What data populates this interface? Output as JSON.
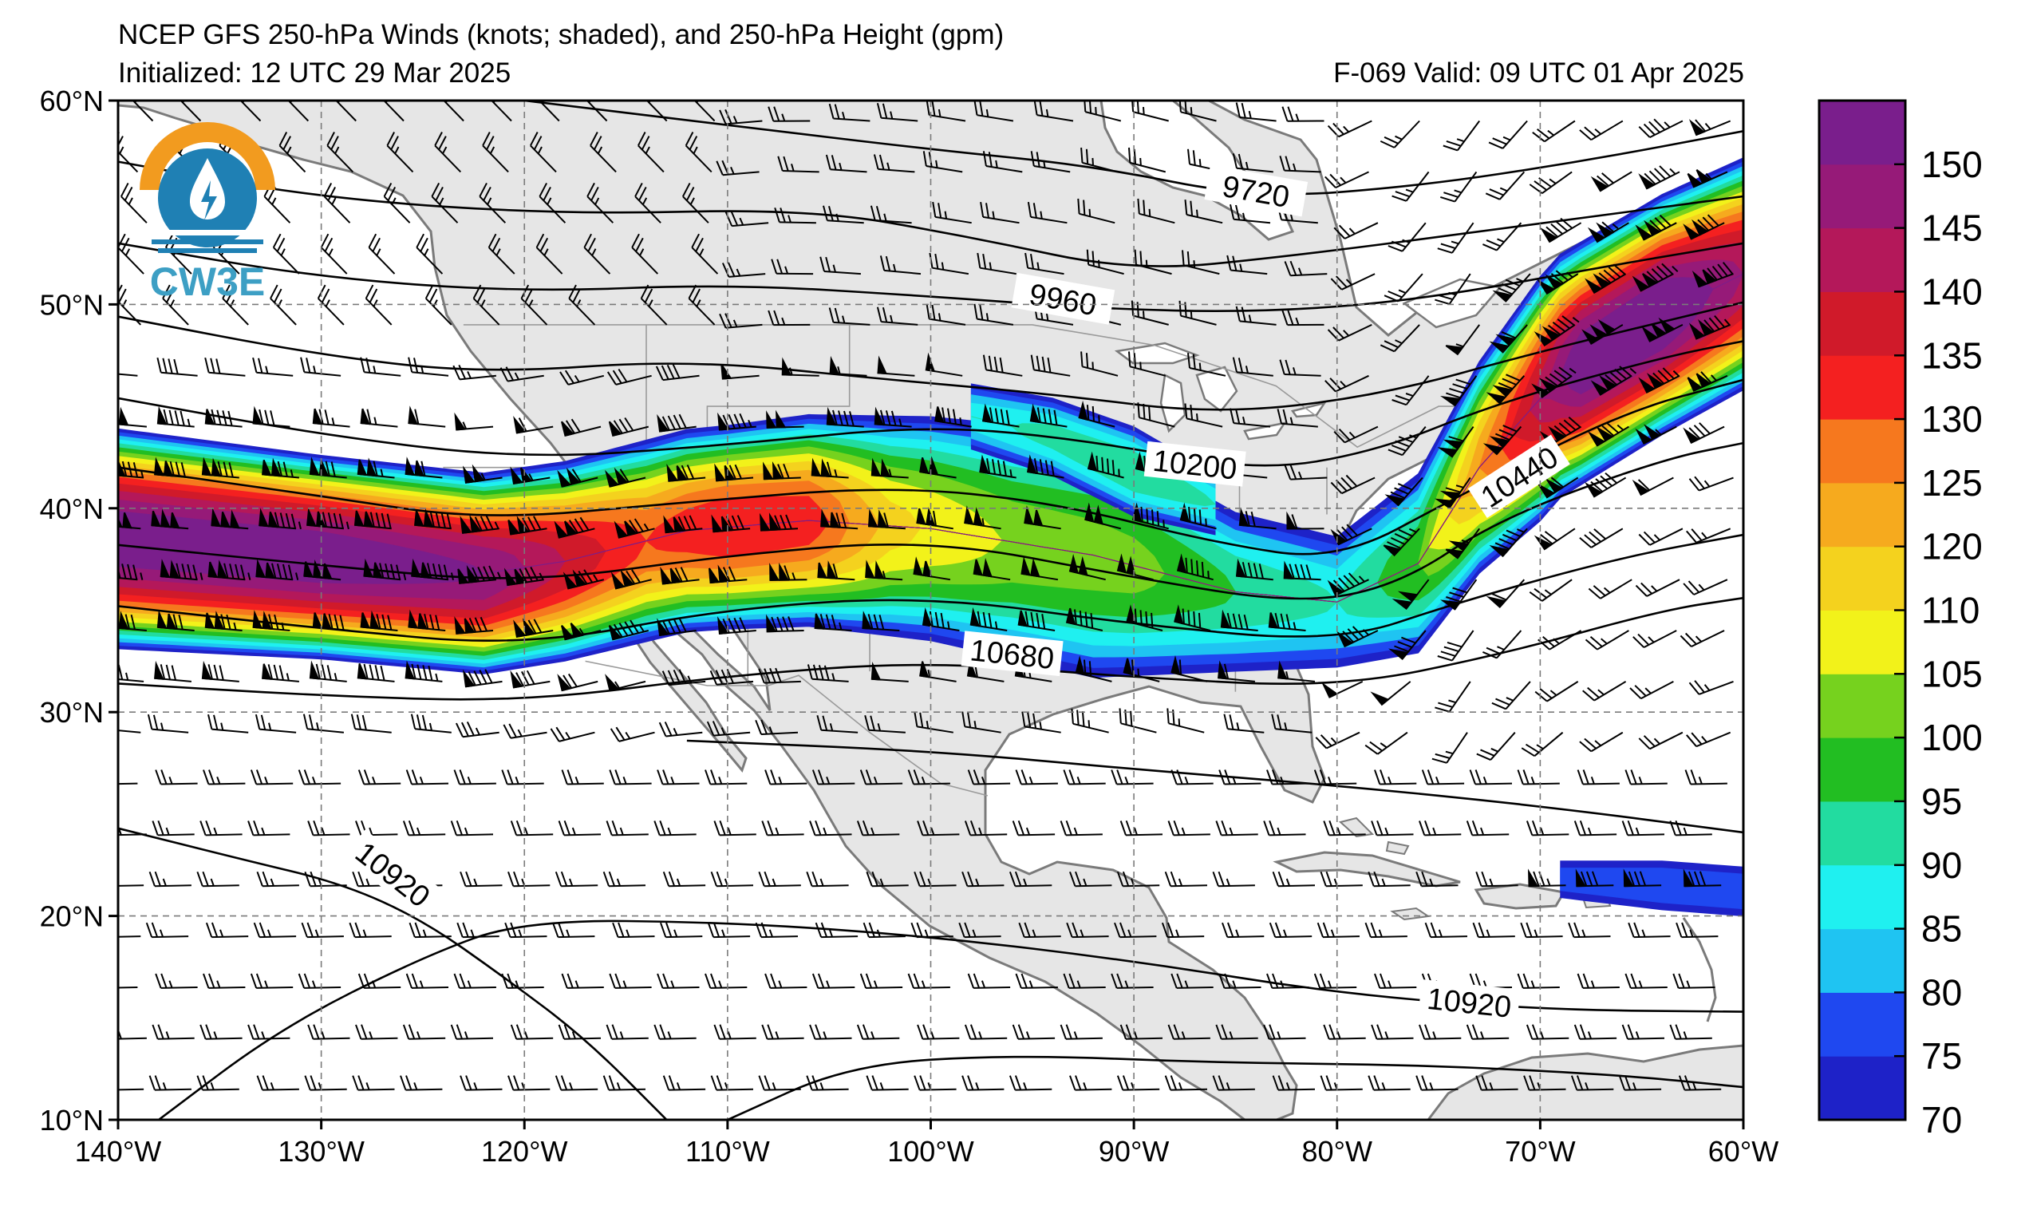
{
  "header": {
    "title": "NCEP GFS 250-hPa Winds (knots; shaded), and 250-hPa Height (gpm)",
    "initialized": "Initialized: 12 UTC 29 Mar 2025",
    "valid": "F-069  Valid: 09 UTC 01 Apr 2025"
  },
  "logo": {
    "text": "CW3E",
    "colors": {
      "orange": "#f29b1f",
      "blue": "#1f80b4"
    }
  },
  "map": {
    "lon_range": [
      -140,
      -60
    ],
    "lat_range": [
      10,
      60
    ],
    "lon_ticks": [
      "140°W",
      "130°W",
      "120°W",
      "110°W",
      "100°W",
      "90°W",
      "80°W",
      "70°W",
      "60°W"
    ],
    "lat_ticks": [
      "10°N",
      "20°N",
      "30°N",
      "40°N",
      "50°N",
      "60°N"
    ],
    "gridlines": "dashed every 10°",
    "land_color": "#e6e6e6",
    "ocean_color": "#ffffff"
  },
  "colorbar": {
    "labels": [
      "70",
      "75",
      "80",
      "85",
      "90",
      "95",
      "100",
      "105",
      "110",
      "120",
      "125",
      "130",
      "135",
      "140",
      "145",
      "150"
    ],
    "bins": [
      {
        "min": 70,
        "color": "#1e22c8"
      },
      {
        "min": 75,
        "color": "#1f48f0"
      },
      {
        "min": 80,
        "color": "#1fc4f2"
      },
      {
        "min": 85,
        "color": "#1ff0f0"
      },
      {
        "min": 90,
        "color": "#22dca0"
      },
      {
        "min": 95,
        "color": "#22be22"
      },
      {
        "min": 100,
        "color": "#76d21e"
      },
      {
        "min": 105,
        "color": "#f2f21a"
      },
      {
        "min": 110,
        "color": "#f4d21e"
      },
      {
        "min": 115,
        "color": "#f6aa1e"
      },
      {
        "min": 120,
        "color": "#f6781e"
      },
      {
        "min": 125,
        "color": "#f42020"
      },
      {
        "min": 130,
        "color": "#d01a2a"
      },
      {
        "min": 135,
        "color": "#b4185a"
      },
      {
        "min": 140,
        "color": "#961a78"
      },
      {
        "min": 145,
        "color": "#7a1e8c"
      }
    ]
  },
  "height_contours": {
    "units": "gpm",
    "labels": [
      {
        "text": "9720",
        "lon": -84,
        "lat": 55.5
      },
      {
        "text": "9960",
        "lon": -93.5,
        "lat": 50.2
      },
      {
        "text": "10200",
        "lon": -87,
        "lat": 42.1
      },
      {
        "text": "10440",
        "lon": -71,
        "lat": 41.5
      },
      {
        "text": "10680",
        "lon": -96,
        "lat": 32.8
      },
      {
        "text": "10920",
        "lon": -126.5,
        "lat": 22.0
      },
      {
        "text": "10920",
        "lon": -73.5,
        "lat": 15.7
      }
    ]
  },
  "jet_regions": [
    {
      "name": "pacific-jet",
      "axis": [
        [
          -140,
          38.5
        ],
        [
          -130,
          37.6
        ],
        [
          -122,
          36.8
        ],
        [
          -118,
          37.4
        ],
        [
          -112,
          38.9
        ],
        [
          -106,
          39.4
        ],
        [
          -100,
          39.0
        ],
        [
          -92,
          37.7
        ],
        [
          -85,
          35.9
        ],
        [
          -80,
          35.4
        ],
        [
          -76,
          37.3
        ],
        [
          -73,
          42.0
        ],
        [
          -69,
          46.5
        ],
        [
          -64,
          49.5
        ],
        [
          -60,
          51.5
        ]
      ],
      "half_width": [
        [
          -140,
          5.4
        ],
        [
          -130,
          5.0
        ],
        [
          -118,
          4.9
        ],
        [
          -110,
          5.0
        ],
        [
          -100,
          5.5
        ],
        [
          -92,
          6.0
        ],
        [
          -85,
          3.9
        ],
        [
          -80,
          3.2
        ],
        [
          -76,
          4.4
        ],
        [
          -70,
          6.0
        ],
        [
          -64,
          5.9
        ],
        [
          -60,
          5.7
        ]
      ],
      "peak": [
        [
          -140,
          150
        ],
        [
          -130,
          150
        ],
        [
          -122,
          145
        ],
        [
          -118,
          135
        ],
        [
          -114,
          125
        ],
        [
          -110,
          130
        ],
        [
          -106,
          128
        ],
        [
          -102,
          112
        ],
        [
          -96,
          104
        ],
        [
          -90,
          102
        ],
        [
          -85,
          95
        ],
        [
          -80,
          90
        ],
        [
          -76,
          100
        ],
        [
          -72,
          125
        ],
        [
          -68,
          150
        ],
        [
          -64,
          152
        ],
        [
          -60,
          140
        ]
      ]
    },
    {
      "name": "canada-lobe",
      "axis": [
        [
          -98,
          44.5
        ],
        [
          -94,
          43.5
        ],
        [
          -90,
          41.8
        ],
        [
          -86,
          40.2
        ]
      ],
      "half_width": [
        [
          -98,
          1.6
        ],
        [
          -90,
          2.2
        ],
        [
          -86,
          1.5
        ]
      ],
      "peak": [
        [
          -98,
          88
        ],
        [
          -94,
          92
        ],
        [
          -90,
          95
        ],
        [
          -86,
          90
        ]
      ]
    },
    {
      "name": "caribbean-jet",
      "axis": [
        [
          -69,
          21.8
        ],
        [
          -64,
          21.5
        ],
        [
          -60,
          21.2
        ]
      ],
      "half_width": [
        [
          -69,
          0.9
        ],
        [
          -64,
          1.2
        ],
        [
          -60,
          1.2
        ]
      ],
      "peak": [
        [
          -69,
          78
        ],
        [
          -64,
          80
        ],
        [
          -60,
          80
        ]
      ]
    }
  ]
}
